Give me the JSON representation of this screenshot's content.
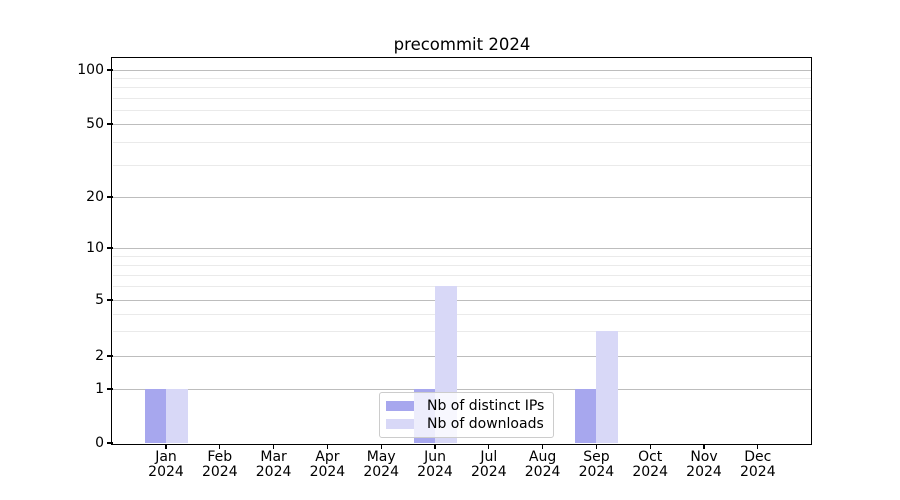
{
  "chart_data": {
    "type": "bar",
    "title": "precommit 2024",
    "xlabel": "",
    "ylabel": "",
    "categories": [
      "Jan 2024",
      "Feb 2024",
      "Mar 2024",
      "Apr 2024",
      "May 2024",
      "Jun 2024",
      "Jul 2024",
      "Aug 2024",
      "Sep 2024",
      "Oct 2024",
      "Nov 2024",
      "Dec 2024"
    ],
    "series": [
      {
        "name": "Nb of distinct IPs",
        "color": "#a7a7ee",
        "values": [
          1,
          0,
          0,
          0,
          0,
          1,
          0,
          0,
          1,
          0,
          0,
          0
        ]
      },
      {
        "name": "Nb of downloads",
        "color": "#d8d8f7",
        "values": [
          1,
          0,
          0,
          0,
          0,
          6,
          0,
          0,
          3,
          0,
          0,
          0
        ]
      }
    ],
    "yscale": "symlog",
    "ylim": [
      0,
      115
    ],
    "y_ticks": [
      0,
      1,
      2,
      5,
      10,
      20,
      50,
      100
    ],
    "y_minor_ticks": [
      3,
      4,
      6,
      7,
      8,
      9,
      30,
      40,
      60,
      70,
      80,
      90
    ],
    "grid": {
      "major": true,
      "minor": true
    },
    "legend_position": "lower center",
    "colors": {
      "axis": "#000000",
      "grid_major": "#bdbdbd",
      "grid_minor": "#eaeaea",
      "legend_border": "#cccccc"
    }
  }
}
